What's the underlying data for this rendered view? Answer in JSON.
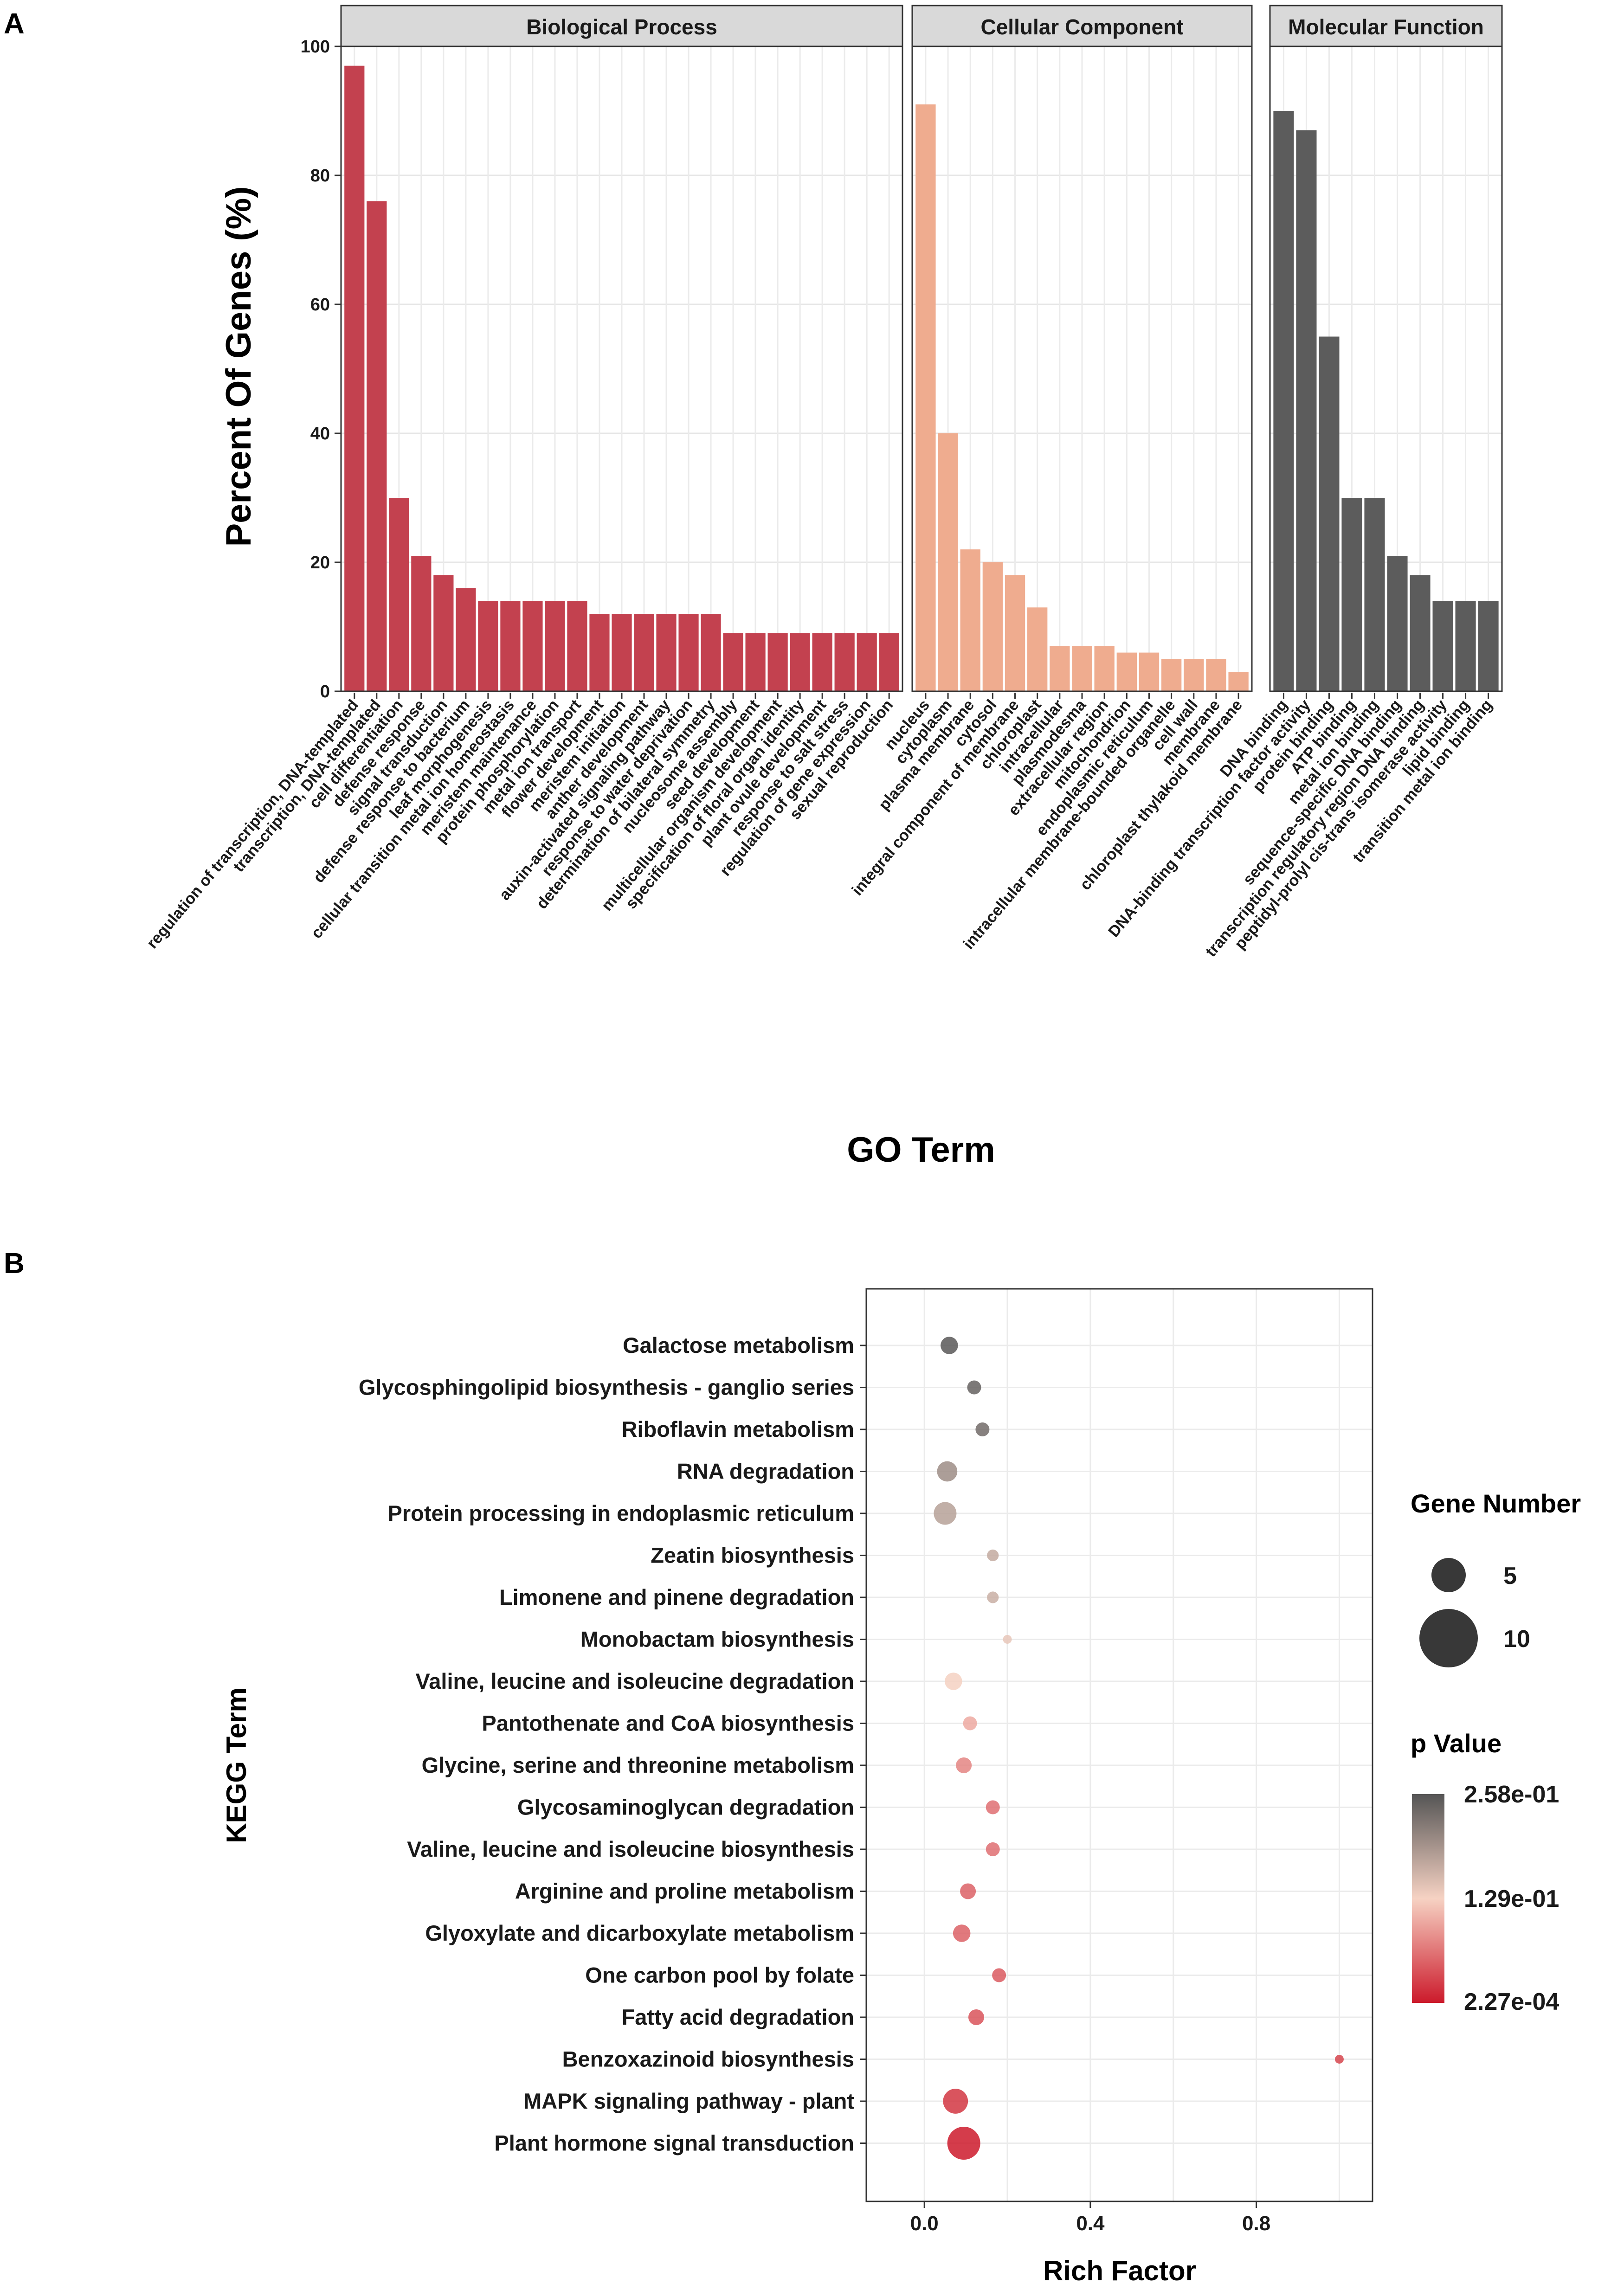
{
  "chart_data": [
    {
      "type": "bar",
      "panel_label": "A",
      "xlabel": "GO Term",
      "ylabel": "Percent Of Genes (%)",
      "ylim": [
        0,
        100
      ],
      "yticks": [
        0,
        20,
        40,
        60,
        80,
        100
      ],
      "facets": [
        {
          "name": "Biological Process",
          "color": "#c3414f",
          "categories": [
            "regulation of transcription, DNA-templated",
            "transcription, DNA-templated",
            "cell differentiation",
            "defense response",
            "signal transduction",
            "defense response to bacterium",
            "leaf morphogenesis",
            "cellular transition metal ion homeostasis",
            "meristem maintenance",
            "protein phosphorylation",
            "metal ion transport",
            "flower development",
            "meristem initiation",
            "anther development",
            "auxin-activated signaling pathway",
            "response to water deprivation",
            "determination of bilateral symmetry",
            "nucleosome assembly",
            "seed development",
            "multicellular organism development",
            "specification of floral organ identity",
            "plant ovule development",
            "response to salt stress",
            "regulation of gene expression",
            "sexual reproduction"
          ],
          "values": [
            97,
            76,
            30,
            21,
            18,
            16,
            14,
            14,
            14,
            14,
            14,
            12,
            12,
            12,
            12,
            12,
            12,
            9,
            9,
            9,
            9,
            9,
            9,
            9,
            9
          ]
        },
        {
          "name": "Cellular Component",
          "color": "#efac8f",
          "categories": [
            "nucleus",
            "cytoplasm",
            "plasma membrane",
            "cytosol",
            "integral component of membrane",
            "chloroplast",
            "intracellular",
            "plasmodesma",
            "extracellular region",
            "mitochondrion",
            "endoplasmic reticulum",
            "intracellular membrane-bounded organelle",
            "cell wall",
            "membrane",
            "chloroplast thylakoid membrane"
          ],
          "values": [
            91,
            40,
            22,
            20,
            18,
            13,
            7,
            7,
            7,
            6,
            6,
            5,
            5,
            5,
            3
          ]
        },
        {
          "name": "Molecular Function",
          "color": "#5c5c5c",
          "categories": [
            "DNA binding",
            "DNA-binding transcription factor activity",
            "protein binding",
            "ATP binding",
            "metal ion binding",
            "sequence-specific DNA binding",
            "transcription regulatory region DNA binding",
            "peptidyl-prolyl cis-trans isomerase activity",
            "lipid binding",
            "transition metal ion binding"
          ],
          "values": [
            90,
            87,
            55,
            30,
            30,
            21,
            18,
            14,
            14,
            14
          ]
        }
      ]
    },
    {
      "type": "scatter",
      "panel_label": "B",
      "xlabel": "Rich Factor",
      "ylabel": "KEGG Term",
      "xlim": [
        -0.14,
        1.08
      ],
      "xticks": [
        "0.0",
        "0.4",
        "0.8"
      ],
      "xtick_values": [
        0,
        0.4,
        0.8
      ],
      "size_legend": {
        "title": "Gene Number",
        "entries": [
          5,
          10
        ]
      },
      "color_legend": {
        "title": "p Value",
        "labels": [
          "2.58e-01",
          "1.29e-01",
          "2.27e-04"
        ],
        "color_high": "#555555",
        "color_mid": "#f6d2c3",
        "color_low": "#cc1a2b"
      },
      "terms": [
        "Galactose metabolism",
        "Glycosphingolipid biosynthesis - ganglio series",
        "Riboflavin metabolism",
        "RNA degradation",
        "Protein processing in endoplasmic reticulum",
        "Zeatin biosynthesis",
        "Limonene and pinene degradation",
        "Monobactam biosynthesis",
        "Valine, leucine and isoleucine degradation",
        "Pantothenate and CoA biosynthesis",
        "Glycine, serine and threonine metabolism",
        "Glycosaminoglycan degradation",
        "Valine, leucine and isoleucine biosynthesis",
        "Arginine and proline metabolism",
        "Glyoxylate and dicarboxylate metabolism",
        "One carbon pool by folate",
        "Fatty acid degradation",
        "Benzoxazinoid biosynthesis",
        "MAPK signaling pathway - plant",
        "Plant hormone signal transduction"
      ],
      "rich_factor": [
        0.06,
        0.12,
        0.14,
        0.055,
        0.05,
        0.165,
        0.165,
        0.2,
        0.07,
        0.11,
        0.095,
        0.165,
        0.165,
        0.105,
        0.09,
        0.18,
        0.125,
        1.0,
        0.075,
        0.095
      ],
      "gene_number": [
        5,
        3,
        3,
        7,
        9,
        2,
        2,
        1,
        5,
        3,
        4,
        3,
        3,
        4,
        5,
        3,
        4,
        1,
        11,
        20
      ],
      "p_value": [
        0.255,
        0.245,
        0.235,
        0.2,
        0.18,
        0.17,
        0.165,
        0.14,
        0.13,
        0.1,
        0.075,
        0.06,
        0.06,
        0.05,
        0.05,
        0.045,
        0.04,
        0.03,
        0.02,
        0.0003
      ]
    }
  ]
}
